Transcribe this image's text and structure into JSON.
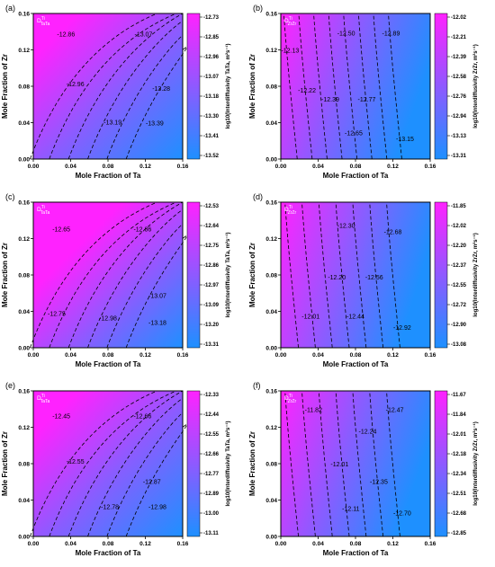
{
  "colors": {
    "high": "#ff22ff",
    "low": "#1e90ff",
    "contour": "#000000",
    "tick": "#000000"
  },
  "chart_data": [
    {
      "type": "heatmap",
      "panel_label": "(a)",
      "label_main": "D",
      "label_sup": "Ti",
      "label_sub": "TaTa",
      "xlabel": "Mole Fraction of Ta",
      "ylabel": "Mole Fraction of  Zr",
      "colorbar_label": "log10(Interdiffusivity TaTa, m²s⁻¹)",
      "xlim": [
        0,
        0.16
      ],
      "ylim": [
        0,
        0.16
      ],
      "xticks": [
        "0.00",
        "0.04",
        "0.08",
        "0.12",
        "0.16"
      ],
      "yticks": [
        "0.00",
        "0.04",
        "0.08",
        "0.12",
        "0.16"
      ],
      "colorbar_ticks": [
        "-12.73",
        "-12.85",
        "-12.96",
        "-13.07",
        "-13.18",
        "-13.30",
        "-13.41",
        "-13.52"
      ],
      "contour_style": "curved",
      "contours": [
        {
          "label": "-12.86",
          "x": 0.035,
          "y": 0.135
        },
        {
          "label": "-13.07",
          "x": 0.118,
          "y": 0.135
        },
        {
          "label": "-12.96",
          "x": 0.045,
          "y": 0.08
        },
        {
          "label": "-13.28",
          "x": 0.137,
          "y": 0.075
        },
        {
          "label": "-13.19",
          "x": 0.085,
          "y": 0.038
        },
        {
          "label": "-13.39",
          "x": 0.13,
          "y": 0.037
        }
      ]
    },
    {
      "type": "heatmap",
      "panel_label": "(b)",
      "label_main": "D",
      "label_sup": "Ti",
      "label_sub": "ZrZr",
      "xlabel": "Mole Fraction of Ta",
      "ylabel": "Mole Fraction of  Zr",
      "colorbar_label": "log10(Interdiffusivity ZrZr, m²s⁻¹)",
      "xlim": [
        0,
        0.16
      ],
      "ylim": [
        0,
        0.16
      ],
      "xticks": [
        "0.00",
        "0.04",
        "0.08",
        "0.12",
        "0.16"
      ],
      "yticks": [
        "0.00",
        "0.04",
        "0.08",
        "0.12",
        "0.16"
      ],
      "colorbar_ticks": [
        "-12.02",
        "-12.21",
        "-12.39",
        "-12.58",
        "-12.76",
        "-12.94",
        "-13.13",
        "-13.31"
      ],
      "contour_style": "vertical",
      "contours": [
        {
          "label": "-12.13",
          "x": 0.01,
          "y": 0.117
        },
        {
          "label": "-12.50",
          "x": 0.07,
          "y": 0.136
        },
        {
          "label": "-12.89",
          "x": 0.118,
          "y": 0.136
        },
        {
          "label": "-12.22",
          "x": 0.028,
          "y": 0.073
        },
        {
          "label": "-12.39",
          "x": 0.053,
          "y": 0.063
        },
        {
          "label": "-12.77",
          "x": 0.092,
          "y": 0.063
        },
        {
          "label": "-12.65",
          "x": 0.078,
          "y": 0.026
        },
        {
          "label": "-13.15",
          "x": 0.133,
          "y": 0.02
        }
      ]
    },
    {
      "type": "heatmap",
      "panel_label": "(c)",
      "label_main": "D",
      "label_sup": "Ti",
      "label_sub": "TaTa",
      "xlabel": "Mole Fraction of Ta",
      "ylabel": "Mole Fraction of  Zr",
      "colorbar_label": "log10(Interdiffusivity TaTa, m²s⁻¹)",
      "xlim": [
        0,
        0.16
      ],
      "ylim": [
        0,
        0.16
      ],
      "xticks": [
        "0.00",
        "0.04",
        "0.08",
        "0.12",
        "0.16"
      ],
      "yticks": [
        "0.00",
        "0.04",
        "0.08",
        "0.12",
        "0.16"
      ],
      "colorbar_ticks": [
        "-12.53",
        "-12.64",
        "-12.75",
        "-12.86",
        "-12.97",
        "-13.09",
        "-13.20",
        "-13.31"
      ],
      "contour_style": "curved",
      "contours": [
        {
          "label": "-12.65",
          "x": 0.03,
          "y": 0.128
        },
        {
          "label": "-12.86",
          "x": 0.117,
          "y": 0.128
        },
        {
          "label": "-13.07",
          "x": 0.133,
          "y": 0.055
        },
        {
          "label": "-12.75",
          "x": 0.025,
          "y": 0.035
        },
        {
          "label": "-12.98",
          "x": 0.08,
          "y": 0.03
        },
        {
          "label": "-13.18",
          "x": 0.133,
          "y": 0.025
        }
      ]
    },
    {
      "type": "heatmap",
      "panel_label": "(d)",
      "label_main": "D",
      "label_sup": "Ti",
      "label_sub": "ZrZr",
      "xlabel": "Mole Fraction of Ta",
      "ylabel": "Mole Fraction of  Zr",
      "colorbar_label": "log10(Interdiffusivity ZrZr, m²s⁻¹)",
      "xlim": [
        0,
        0.16
      ],
      "ylim": [
        0,
        0.16
      ],
      "xticks": [
        "0.00",
        "0.04",
        "0.08",
        "0.12",
        "0.16"
      ],
      "yticks": [
        "0.00",
        "0.04",
        "0.08",
        "0.12",
        "0.16"
      ],
      "colorbar_ticks": [
        "-11.85",
        "-12.02",
        "-12.20",
        "-12.37",
        "-12.55",
        "-12.72",
        "-12.90",
        "-13.08"
      ],
      "contour_style": "vertical",
      "contours": [
        {
          "label": "-12.30",
          "x": 0.07,
          "y": 0.132
        },
        {
          "label": "-12.68",
          "x": 0.12,
          "y": 0.125
        },
        {
          "label": "-12.20",
          "x": 0.06,
          "y": 0.075
        },
        {
          "label": "-12.56",
          "x": 0.1,
          "y": 0.075
        },
        {
          "label": "-12.01",
          "x": 0.032,
          "y": 0.032
        },
        {
          "label": "-12.44",
          "x": 0.08,
          "y": 0.032
        },
        {
          "label": "-12.92",
          "x": 0.13,
          "y": 0.02
        }
      ]
    },
    {
      "type": "heatmap",
      "panel_label": "(e)",
      "label_main": "D",
      "label_sup": "Ti",
      "label_sub": "TaTa",
      "xlabel": "Mole Fraction of Ta",
      "ylabel": "Mole Fraction of  Zr",
      "colorbar_label": "log10(Interdiffusivity TaTa, m²s⁻¹)",
      "xlim": [
        0,
        0.16
      ],
      "ylim": [
        0,
        0.16
      ],
      "xticks": [
        "0.00",
        "0.04",
        "0.08",
        "0.12",
        "0.16"
      ],
      "yticks": [
        "0.00",
        "0.04",
        "0.08",
        "0.12",
        "0.16"
      ],
      "colorbar_ticks": [
        "-12.33",
        "-12.44",
        "-12.55",
        "-12.66",
        "-12.77",
        "-12.89",
        "-13.00",
        "-13.11"
      ],
      "contour_style": "curved",
      "contours": [
        {
          "label": "-12.45",
          "x": 0.03,
          "y": 0.13
        },
        {
          "label": "-12.66",
          "x": 0.117,
          "y": 0.13
        },
        {
          "label": "-12.55",
          "x": 0.045,
          "y": 0.08
        },
        {
          "label": "-12.87",
          "x": 0.127,
          "y": 0.058
        },
        {
          "label": "-12.78",
          "x": 0.082,
          "y": 0.03
        },
        {
          "label": "-12.98",
          "x": 0.133,
          "y": 0.03
        }
      ]
    },
    {
      "type": "heatmap",
      "panel_label": "(f)",
      "label_main": "D",
      "label_sup": "Ti",
      "label_sub": "ZrZr",
      "xlabel": "Mole Fraction of Ta",
      "ylabel": "Mole Fraction of  Zr",
      "colorbar_label": "log10(Interdiffusivity ZrZr, m²s⁻¹)",
      "xlim": [
        0,
        0.16
      ],
      "ylim": [
        0,
        0.16
      ],
      "xticks": [
        "0.00",
        "0.04",
        "0.08",
        "0.12",
        "0.16"
      ],
      "yticks": [
        "0.00",
        "0.04",
        "0.08",
        "0.12",
        "0.16"
      ],
      "colorbar_ticks": [
        "-11.67",
        "-11.84",
        "-12.01",
        "-12.18",
        "-12.34",
        "-12.51",
        "-12.68",
        "-12.85"
      ],
      "contour_style": "vertical",
      "contours": [
        {
          "label": "-11.82",
          "x": 0.035,
          "y": 0.137
        },
        {
          "label": "-12.47",
          "x": 0.122,
          "y": 0.137
        },
        {
          "label": "-12.24",
          "x": 0.093,
          "y": 0.113
        },
        {
          "label": "-12.01",
          "x": 0.063,
          "y": 0.077
        },
        {
          "label": "-12.35",
          "x": 0.105,
          "y": 0.058
        },
        {
          "label": "-12.11",
          "x": 0.075,
          "y": 0.028
        },
        {
          "label": "-12.70",
          "x": 0.13,
          "y": 0.023
        }
      ]
    }
  ]
}
